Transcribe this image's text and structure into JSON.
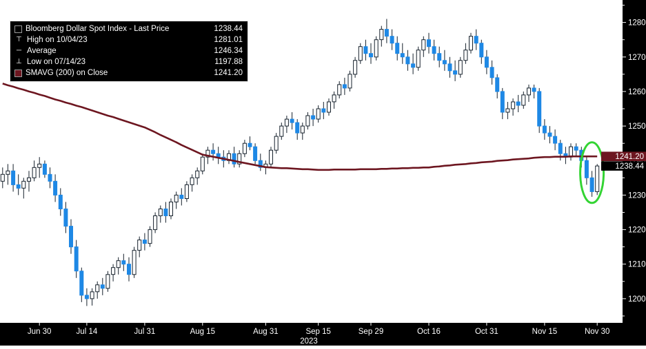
{
  "legend": {
    "rows": [
      {
        "icon_name": "price-series-swatch-icon",
        "swatch": "#000000",
        "glyph": "",
        "label": "Bloomberg Dollar Spot Index - Last Price",
        "value": "1238.44"
      },
      {
        "icon_name": "high-marker-icon",
        "swatch": "",
        "glyph": "⊤",
        "label": "High on 10/04/23",
        "value": "1281.01"
      },
      {
        "icon_name": "average-marker-icon",
        "swatch": "",
        "glyph": "─",
        "label": "Average",
        "value": "1246.34"
      },
      {
        "icon_name": "low-marker-icon",
        "swatch": "",
        "glyph": "⊥",
        "label": "Low on 07/14/23",
        "value": "1197.88"
      },
      {
        "icon_name": "sma-swatch-icon",
        "swatch": "#6d1620",
        "glyph": "",
        "label": "SMAVG (200) on Close",
        "value": "1241.20"
      }
    ]
  },
  "chart_data": {
    "type": "candlestick",
    "title": "Bloomberg Dollar Spot Index - Last Price",
    "last_price": 1238.44,
    "stats": {
      "high": {
        "date": "10/04/23",
        "value": 1281.01
      },
      "average": 1246.34,
      "low": {
        "date": "07/14/23",
        "value": 1197.88
      },
      "smavg_200_close": 1241.2
    },
    "ylim": [
      1193,
      1286.5
    ],
    "y_ticks": [
      1200,
      1210,
      1220,
      1230,
      1240,
      1250,
      1260,
      1270,
      1280
    ],
    "x_ticks": [
      {
        "i": 7,
        "label": "Jun 30"
      },
      {
        "i": 16,
        "label": "Jul 14"
      },
      {
        "i": 27,
        "label": "Jul 31"
      },
      {
        "i": 38,
        "label": "Aug 15"
      },
      {
        "i": 50,
        "label": "Aug 31"
      },
      {
        "i": 60,
        "label": "Sep 15"
      },
      {
        "i": 70,
        "label": "Sep 29"
      },
      {
        "i": 81,
        "label": "Oct 16"
      },
      {
        "i": 92,
        "label": "Oct 31"
      },
      {
        "i": 103,
        "label": "Nov 15"
      },
      {
        "i": 113,
        "label": "Nov 30"
      }
    ],
    "year_label": "2023",
    "candles": [
      [
        1234,
        1238,
        1232,
        1236
      ],
      [
        1236,
        1239,
        1233,
        1237
      ],
      [
        1237,
        1239,
        1231,
        1233
      ],
      [
        1233,
        1236,
        1230,
        1232
      ],
      [
        1232,
        1235,
        1229,
        1234
      ],
      [
        1234,
        1237,
        1231,
        1235
      ],
      [
        1235,
        1240,
        1234,
        1238
      ],
      [
        1238,
        1241,
        1235,
        1239
      ],
      [
        1239,
        1240,
        1235,
        1236
      ],
      [
        1236,
        1238,
        1232,
        1234
      ],
      [
        1234,
        1236,
        1228,
        1230
      ],
      [
        1230,
        1232,
        1224,
        1226
      ],
      [
        1226,
        1228,
        1219,
        1221
      ],
      [
        1221,
        1223,
        1213,
        1215
      ],
      [
        1215,
        1217,
        1206,
        1208
      ],
      [
        1208,
        1209,
        1199,
        1201
      ],
      [
        1201,
        1203,
        1197.88,
        1200
      ],
      [
        1200,
        1203,
        1198,
        1202
      ],
      [
        1202,
        1205,
        1200,
        1204
      ],
      [
        1204,
        1206,
        1201,
        1203
      ],
      [
        1203,
        1208,
        1202,
        1207
      ],
      [
        1207,
        1210,
        1205,
        1209
      ],
      [
        1209,
        1212,
        1207,
        1211
      ],
      [
        1211,
        1213,
        1208,
        1210
      ],
      [
        1210,
        1212,
        1205,
        1207
      ],
      [
        1207,
        1215,
        1206,
        1214
      ],
      [
        1214,
        1218,
        1212,
        1217
      ],
      [
        1217,
        1219,
        1214,
        1216
      ],
      [
        1216,
        1221,
        1215,
        1220
      ],
      [
        1220,
        1225,
        1219,
        1224
      ],
      [
        1224,
        1227,
        1222,
        1226
      ],
      [
        1226,
        1228,
        1222,
        1224
      ],
      [
        1224,
        1229,
        1223,
        1228
      ],
      [
        1228,
        1231,
        1226,
        1230
      ],
      [
        1230,
        1232,
        1227,
        1229
      ],
      [
        1229,
        1234,
        1228,
        1233
      ],
      [
        1233,
        1236,
        1231,
        1235
      ],
      [
        1235,
        1238,
        1233,
        1237
      ],
      [
        1237,
        1242,
        1236,
        1241
      ],
      [
        1241,
        1244,
        1239,
        1243
      ],
      [
        1243,
        1245,
        1240,
        1242
      ],
      [
        1242,
        1244,
        1239,
        1241
      ],
      [
        1241,
        1243,
        1238,
        1240
      ],
      [
        1240,
        1243,
        1239,
        1242
      ],
      [
        1242,
        1244,
        1238,
        1239
      ],
      [
        1239,
        1243,
        1238,
        1242
      ],
      [
        1242,
        1246,
        1241,
        1245
      ],
      [
        1245,
        1247,
        1243,
        1244
      ],
      [
        1244,
        1245,
        1239,
        1240
      ],
      [
        1240,
        1242,
        1237,
        1238
      ],
      [
        1238,
        1240,
        1236,
        1239
      ],
      [
        1239,
        1244,
        1238,
        1243
      ],
      [
        1243,
        1248,
        1242,
        1247
      ],
      [
        1247,
        1251,
        1246,
        1250
      ],
      [
        1250,
        1253,
        1248,
        1252
      ],
      [
        1252,
        1254,
        1249,
        1251
      ],
      [
        1251,
        1252,
        1246,
        1248
      ],
      [
        1248,
        1251,
        1246,
        1250
      ],
      [
        1250,
        1254,
        1249,
        1253
      ],
      [
        1253,
        1255,
        1250,
        1252
      ],
      [
        1252,
        1256,
        1251,
        1255
      ],
      [
        1255,
        1257,
        1252,
        1254
      ],
      [
        1254,
        1258,
        1253,
        1257
      ],
      [
        1257,
        1260,
        1255,
        1259
      ],
      [
        1259,
        1263,
        1258,
        1262
      ],
      [
        1262,
        1264,
        1259,
        1261
      ],
      [
        1261,
        1266,
        1260,
        1265
      ],
      [
        1265,
        1270,
        1264,
        1269
      ],
      [
        1269,
        1274,
        1268,
        1273
      ],
      [
        1273,
        1275,
        1269,
        1271
      ],
      [
        1271,
        1274,
        1268,
        1270
      ],
      [
        1270,
        1276,
        1269,
        1275
      ],
      [
        1275,
        1279,
        1273,
        1278
      ],
      [
        1278,
        1281.01,
        1274,
        1276
      ],
      [
        1276,
        1278,
        1272,
        1274
      ],
      [
        1274,
        1276,
        1269,
        1271
      ],
      [
        1271,
        1274,
        1268,
        1270
      ],
      [
        1270,
        1272,
        1266,
        1268
      ],
      [
        1268,
        1271,
        1265,
        1267
      ],
      [
        1267,
        1273,
        1266,
        1272
      ],
      [
        1272,
        1276,
        1270,
        1275
      ],
      [
        1275,
        1277,
        1271,
        1273
      ],
      [
        1273,
        1275,
        1269,
        1271
      ],
      [
        1271,
        1273,
        1267,
        1269
      ],
      [
        1269,
        1272,
        1266,
        1268
      ],
      [
        1268,
        1270,
        1264,
        1266
      ],
      [
        1266,
        1269,
        1263,
        1265
      ],
      [
        1265,
        1270,
        1264,
        1269
      ],
      [
        1269,
        1274,
        1268,
        1272
      ],
      [
        1272,
        1277,
        1271,
        1276
      ],
      [
        1276,
        1278,
        1272,
        1274
      ],
      [
        1274,
        1275,
        1268,
        1270
      ],
      [
        1270,
        1272,
        1265,
        1267
      ],
      [
        1267,
        1269,
        1262,
        1264
      ],
      [
        1264,
        1265,
        1258,
        1260
      ],
      [
        1260,
        1261,
        1252,
        1254
      ],
      [
        1254,
        1257,
        1252,
        1255
      ],
      [
        1255,
        1258,
        1253,
        1257
      ],
      [
        1257,
        1259,
        1254,
        1256
      ],
      [
        1256,
        1260,
        1255,
        1259
      ],
      [
        1259,
        1262,
        1257,
        1261
      ],
      [
        1261,
        1262,
        1258,
        1260
      ],
      [
        1260,
        1261,
        1248,
        1250
      ],
      [
        1250,
        1252,
        1246,
        1248
      ],
      [
        1248,
        1250,
        1245,
        1247
      ],
      [
        1247,
        1249,
        1243,
        1245
      ],
      [
        1245,
        1246,
        1240,
        1242
      ],
      [
        1242,
        1244,
        1239,
        1241
      ],
      [
        1241,
        1245,
        1240,
        1244
      ],
      [
        1244,
        1245,
        1241,
        1243
      ],
      [
        1243,
        1244,
        1238,
        1240
      ],
      [
        1240,
        1241,
        1233,
        1235
      ],
      [
        1235,
        1237,
        1229.5,
        1231
      ],
      [
        1231,
        1239,
        1230,
        1238.44
      ]
    ],
    "sma": [
      1262.3,
      1261.8,
      1261.4,
      1260.9,
      1260.5,
      1260.0,
      1259.6,
      1259.1,
      1258.7,
      1258.2,
      1257.7,
      1257.3,
      1256.8,
      1256.4,
      1255.9,
      1255.5,
      1255.0,
      1254.5,
      1254.0,
      1253.5,
      1253.0,
      1252.6,
      1252.1,
      1251.6,
      1251.1,
      1250.6,
      1250.1,
      1249.6,
      1248.9,
      1248.2,
      1247.4,
      1246.7,
      1246.0,
      1245.3,
      1244.5,
      1243.8,
      1243.1,
      1242.4,
      1241.7,
      1241.4,
      1241.1,
      1240.8,
      1240.5,
      1240.2,
      1239.9,
      1239.6,
      1239.3,
      1239.0,
      1238.7,
      1238.4,
      1238.1,
      1238.0,
      1237.9,
      1237.8,
      1237.8,
      1237.7,
      1237.6,
      1237.5,
      1237.5,
      1237.4,
      1237.3,
      1237.3,
      1237.3,
      1237.4,
      1237.4,
      1237.4,
      1237.4,
      1237.4,
      1237.5,
      1237.5,
      1237.5,
      1237.5,
      1237.6,
      1237.6,
      1237.7,
      1237.7,
      1237.8,
      1237.8,
      1237.9,
      1237.9,
      1238.0,
      1238.0,
      1238.2,
      1238.3,
      1238.5,
      1238.6,
      1238.8,
      1238.9,
      1239.0,
      1239.2,
      1239.3,
      1239.5,
      1239.6,
      1239.7,
      1239.9,
      1240.0,
      1240.1,
      1240.3,
      1240.4,
      1240.5,
      1240.6,
      1240.8,
      1240.9,
      1241.0,
      1241.0,
      1241.1,
      1241.1,
      1241.1,
      1241.2,
      1241.2,
      1241.2,
      1241.2,
      1241.2,
      1241.2
    ],
    "price_callouts": [
      {
        "text": "1241.20",
        "price": 1241.2,
        "bg": "#6d1620"
      },
      {
        "text": "1238.44",
        "price": 1238.44,
        "bg": "#000000"
      }
    ],
    "annotation_ellipse": {
      "center_index": 112,
      "center_price": 1236.5,
      "color": "#33d433"
    },
    "colors": {
      "plot_bg": "#ffffff",
      "axis_bg": "#000000",
      "axis_text": "#ffffff",
      "up": "#ffffff",
      "down": "#1e88e5",
      "wick": "#15202b",
      "sma": "#6d1620"
    }
  }
}
